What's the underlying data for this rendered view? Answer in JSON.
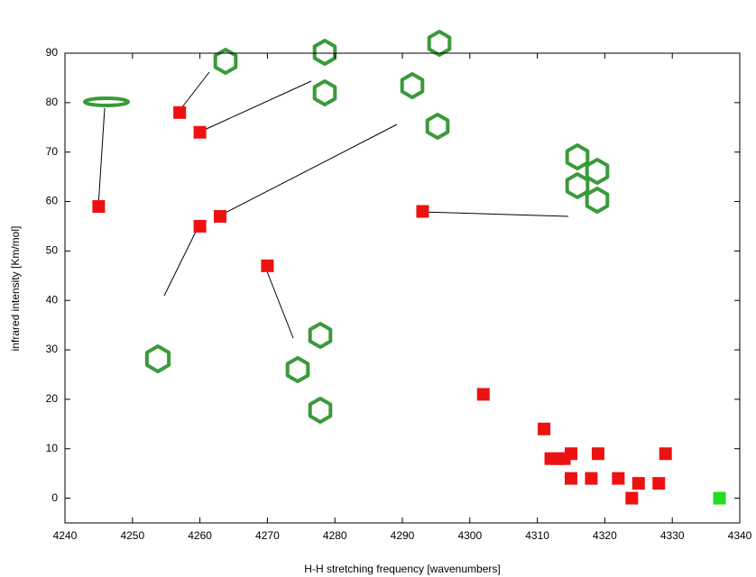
{
  "chart_data": {
    "type": "scatter",
    "xlabel": "H-H stretching frequency [wavenumbers]",
    "ylabel": "infrared intensity [Km/mol]",
    "xlim": [
      4240,
      4340
    ],
    "xticks": [
      4240,
      4250,
      4260,
      4270,
      4280,
      4290,
      4300,
      4310,
      4320,
      4330,
      4340
    ],
    "ylim": [
      -5,
      90
    ],
    "yticks": [
      0,
      10,
      20,
      30,
      40,
      50,
      60,
      70,
      80,
      90
    ],
    "series": [
      {
        "color": "#ee1111",
        "x": [
          4245,
          4257,
          4260,
          4260,
          4263,
          4270,
          4293,
          4302,
          4311,
          4312,
          4313,
          4314,
          4315,
          4315,
          4318,
          4319,
          4322,
          4324,
          4325,
          4328,
          4329
        ],
        "values": [
          59,
          78,
          74,
          55,
          57,
          47,
          58,
          21,
          14,
          8,
          8,
          8,
          9,
          4,
          4,
          9,
          4,
          0,
          3,
          3,
          9
        ]
      },
      {
        "color": "#22dd22",
        "x": [
          4337
        ],
        "values": [
          0
        ]
      }
    ]
  }
}
